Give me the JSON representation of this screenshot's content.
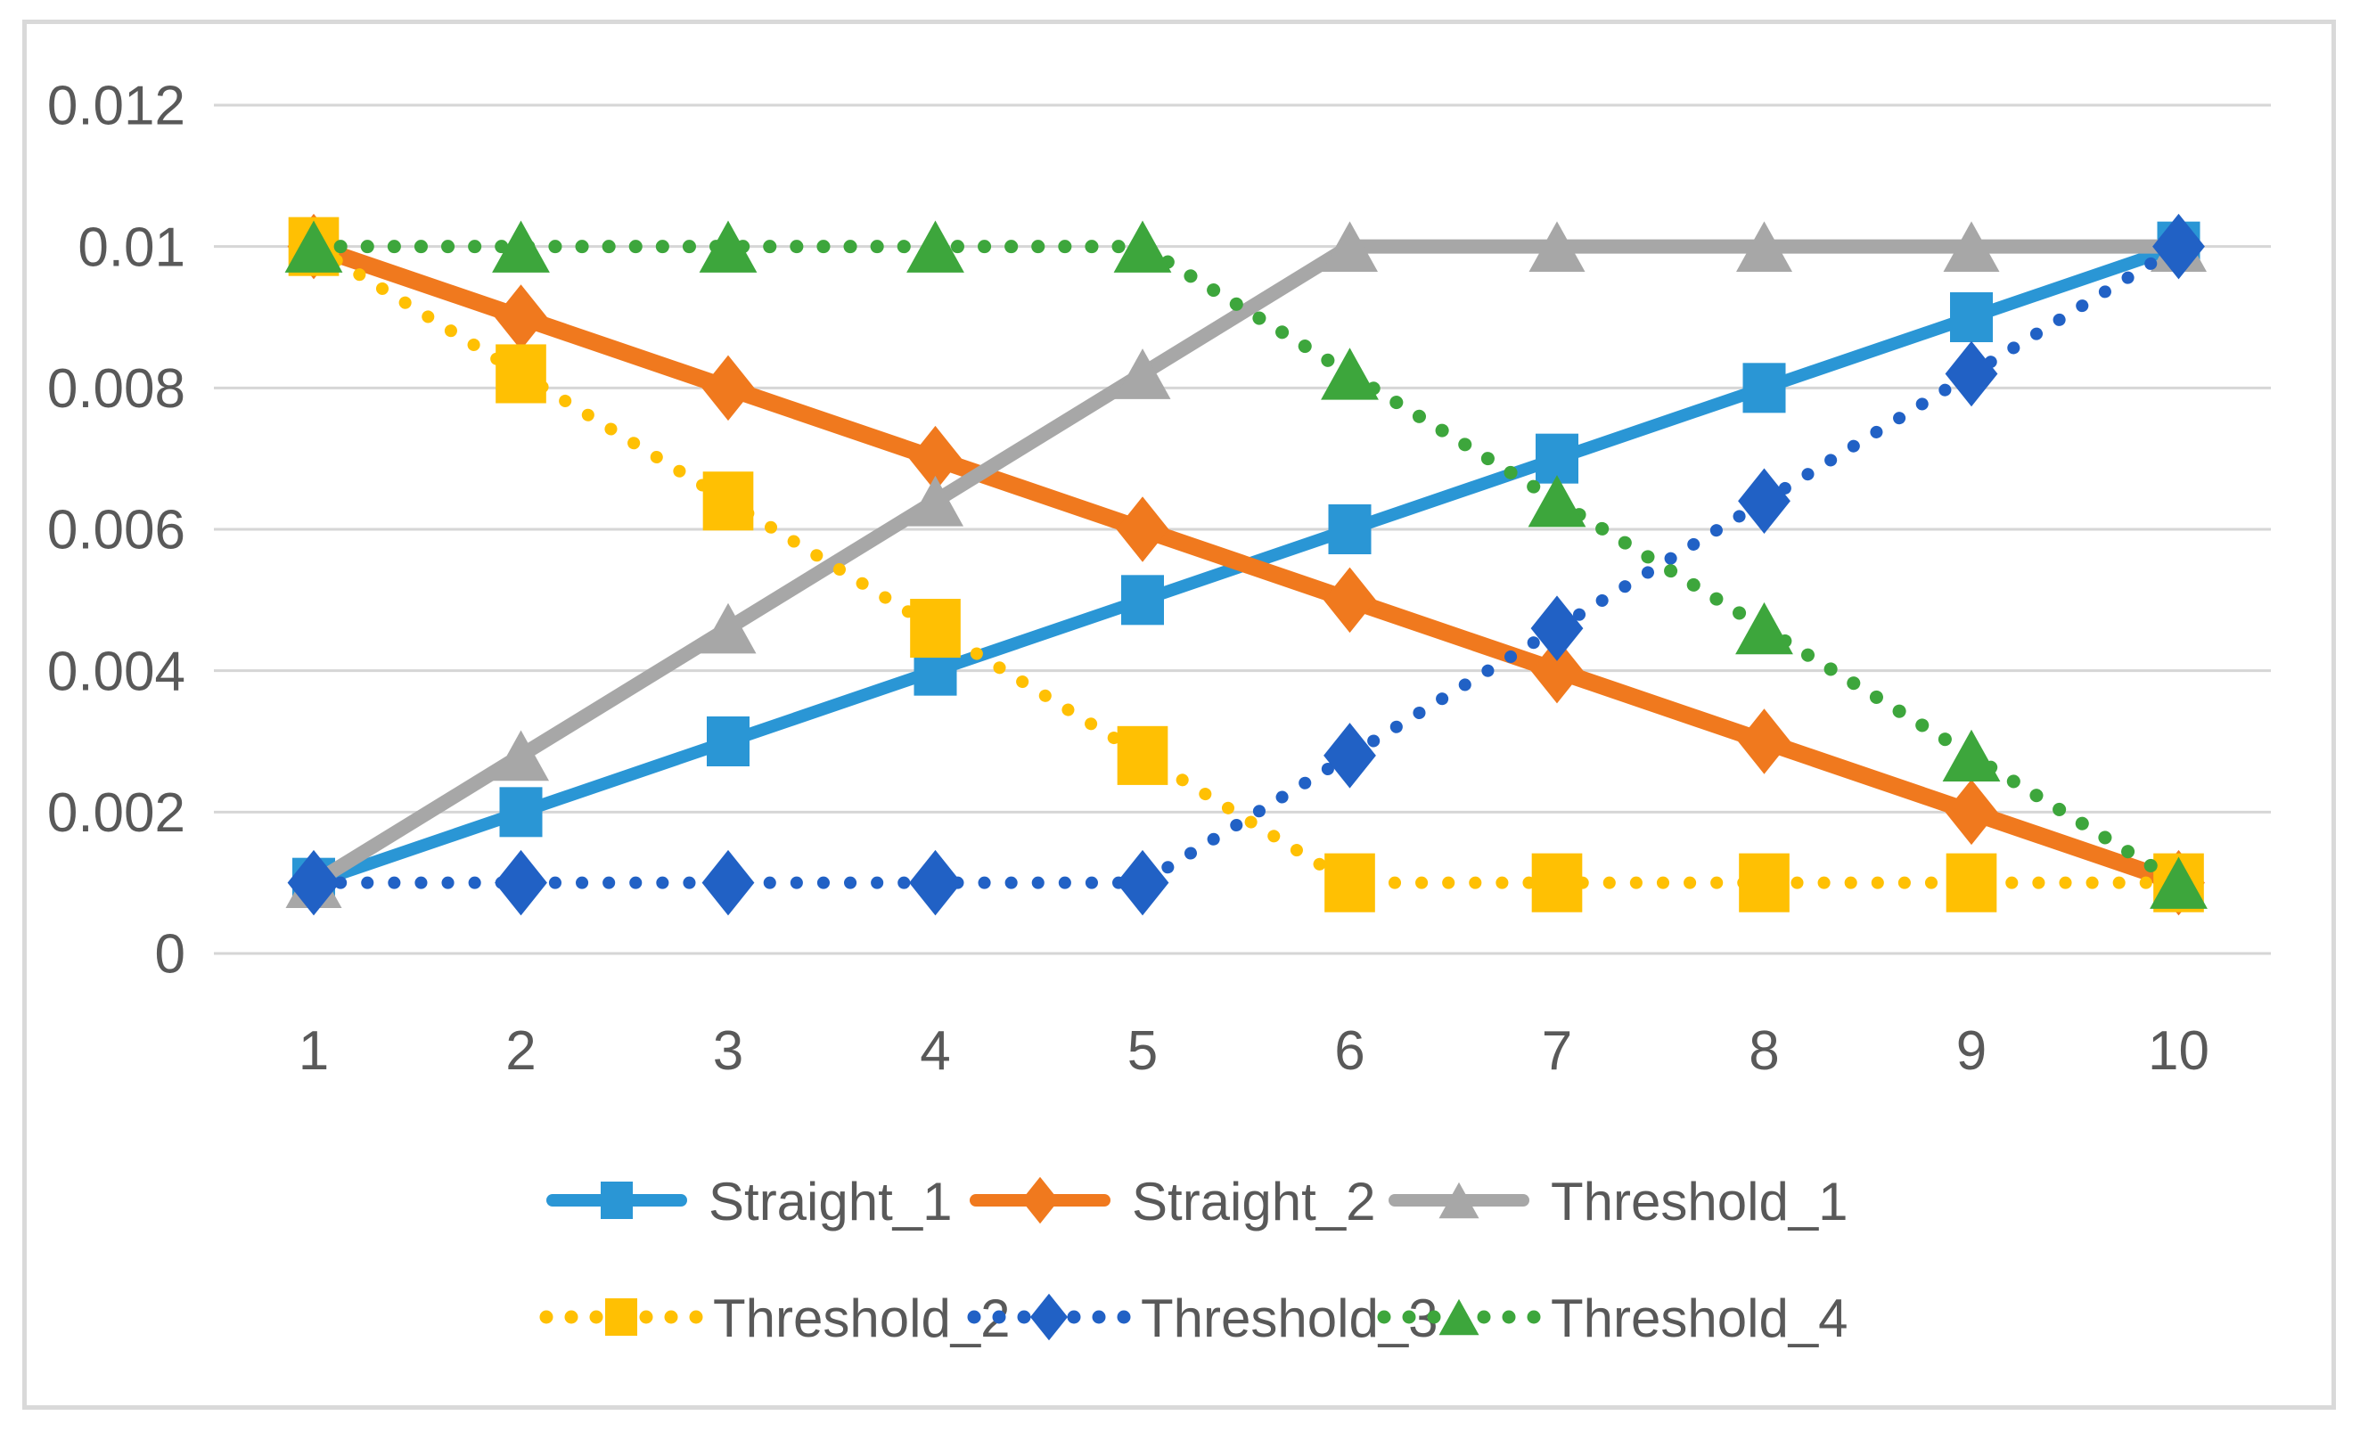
{
  "figure": {
    "background": "#FFFFFF",
    "border_color": "#D9D9D9",
    "grid_color": "#D6D6D6",
    "text_color": "#595959"
  },
  "chart_data": {
    "type": "line",
    "title": "",
    "x": [
      1,
      2,
      3,
      4,
      5,
      6,
      7,
      8,
      9,
      10
    ],
    "xtick_labels": [
      "1",
      "2",
      "3",
      "4",
      "5",
      "6",
      "7",
      "8",
      "9",
      "10"
    ],
    "ylim": [
      0,
      0.012
    ],
    "yticks": [
      0,
      0.002,
      0.004,
      0.006,
      0.008,
      0.01,
      0.012
    ],
    "ytick_labels": [
      "0",
      "0.002",
      "0.004",
      "0.006",
      "0.008",
      "0.01",
      "0.012"
    ],
    "grid": true,
    "legend_position": "bottom",
    "series": [
      {
        "name": "Straight_1",
        "color": "#2A96D5",
        "line": "solid",
        "marker": "square",
        "values": [
          0.001,
          0.002,
          0.003,
          0.004,
          0.005,
          0.006,
          0.007,
          0.008,
          0.009,
          0.01
        ]
      },
      {
        "name": "Straight_2",
        "color": "#F0791E",
        "line": "solid",
        "marker": "diamond",
        "values": [
          0.01,
          0.009,
          0.008,
          0.007,
          0.006,
          0.005,
          0.004,
          0.003,
          0.002,
          0.001
        ]
      },
      {
        "name": "Threshold_1",
        "color": "#A7A7A7",
        "line": "solid",
        "marker": "triangle",
        "values": [
          0.001,
          0.0028,
          0.0046,
          0.0064,
          0.0082,
          0.01,
          0.01,
          0.01,
          0.01,
          0.01
        ]
      },
      {
        "name": "Threshold_2",
        "color": "#FFC003",
        "line": "dotted",
        "marker": "square",
        "values": [
          0.01,
          0.0082,
          0.0064,
          0.0046,
          0.0028,
          0.001,
          0.001,
          0.001,
          0.001,
          0.001
        ]
      },
      {
        "name": "Threshold_3",
        "color": "#2161C5",
        "line": "dotted",
        "marker": "diamond",
        "values": [
          0.001,
          0.001,
          0.001,
          0.001,
          0.001,
          0.0028,
          0.0046,
          0.0064,
          0.0082,
          0.01
        ]
      },
      {
        "name": "Threshold_4",
        "color": "#3DA63C",
        "line": "dotted",
        "marker": "triangle",
        "values": [
          0.01,
          0.01,
          0.01,
          0.01,
          0.01,
          0.0082,
          0.0064,
          0.0046,
          0.0028,
          0.001
        ]
      }
    ]
  }
}
